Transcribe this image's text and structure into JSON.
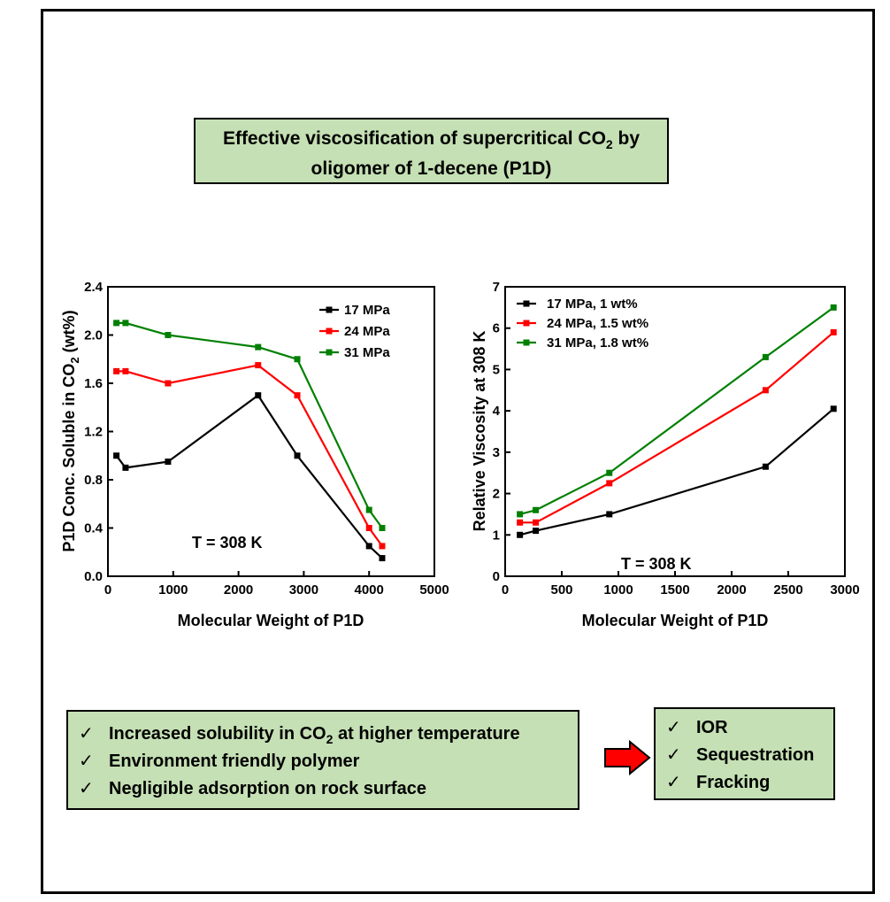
{
  "header": {
    "title_line1_pre": "Effective viscosification of supercritical CO",
    "title_line1_sub": "2",
    "title_line1_post": " by",
    "title_line2": "oligomer of 1-decene (P1D)"
  },
  "chart_data": [
    {
      "type": "line",
      "xlabel": "Molecular Weight of P1D",
      "ylabel_pre": "P1D Conc. Soluble in CO",
      "ylabel_sub": "2",
      "ylabel_post": " (wt%)",
      "xlim": [
        0,
        5000
      ],
      "ylim": [
        0.0,
        2.4
      ],
      "xticks": [
        "0",
        "1000",
        "2000",
        "3000",
        "4000",
        "5000"
      ],
      "yticks": [
        "0.0",
        "0.4",
        "0.8",
        "1.2",
        "1.6",
        "2.0",
        "2.4"
      ],
      "annotation": "T = 308 K",
      "legend_position": "top-right",
      "grid": false,
      "series": [
        {
          "name": "17 MPa",
          "color": "#000000",
          "x": [
            130,
            270,
            920,
            2300,
            2900,
            4000,
            4200
          ],
          "y": [
            1.0,
            0.9,
            0.95,
            1.5,
            1.0,
            0.25,
            0.15
          ]
        },
        {
          "name": "24 MPa",
          "color": "#ff0000",
          "x": [
            130,
            270,
            920,
            2300,
            2900,
            4000,
            4200
          ],
          "y": [
            1.7,
            1.7,
            1.6,
            1.75,
            1.5,
            0.4,
            0.25
          ]
        },
        {
          "name": "31 MPa",
          "color": "#008000",
          "x": [
            130,
            270,
            920,
            2300,
            2900,
            4000,
            4200
          ],
          "y": [
            2.1,
            2.1,
            2.0,
            1.9,
            1.8,
            0.55,
            0.4
          ]
        }
      ]
    },
    {
      "type": "line",
      "xlabel": "Molecular Weight of P1D",
      "ylabel": "Relative Viscosity at 308 K",
      "xlim": [
        0,
        3000
      ],
      "ylim": [
        0,
        7
      ],
      "xticks": [
        "0",
        "500",
        "1000",
        "1500",
        "2000",
        "2500",
        "3000"
      ],
      "yticks": [
        "0",
        "1",
        "2",
        "3",
        "4",
        "5",
        "6",
        "7"
      ],
      "annotation": "T = 308 K",
      "legend_position": "top-left",
      "grid": false,
      "series": [
        {
          "name": "17 MPa, 1 wt%",
          "color": "#000000",
          "x": [
            130,
            270,
            920,
            2300,
            2900
          ],
          "y": [
            1.0,
            1.1,
            1.5,
            2.65,
            4.05
          ]
        },
        {
          "name": "24 MPa, 1.5 wt%",
          "color": "#ff0000",
          "x": [
            130,
            270,
            920,
            2300,
            2900
          ],
          "y": [
            1.3,
            1.3,
            2.25,
            4.5,
            5.9
          ]
        },
        {
          "name": "31 MPa, 1.8 wt%",
          "color": "#008000",
          "x": [
            130,
            270,
            920,
            2300,
            2900
          ],
          "y": [
            1.5,
            1.6,
            2.5,
            5.3,
            6.5
          ]
        }
      ]
    }
  ],
  "features": {
    "check_symbol": "✓",
    "item1_pre": "Increased solubility in CO",
    "item1_sub": "2",
    "item1_post": " at higher temperature",
    "item2": "Environment friendly polymer",
    "item3": "Negligible adsorption on rock surface"
  },
  "applications": {
    "items": [
      "IOR",
      "Sequestration",
      "Fracking"
    ]
  },
  "colors": {
    "box_fill": "#c5e0b4",
    "arrow_fill": "#ff0000"
  }
}
